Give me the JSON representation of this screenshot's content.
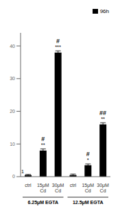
{
  "chart_data": {
    "type": "bar",
    "categories": [
      "ctrl",
      "15μM\nCd",
      "30μM\nCd",
      "ctrl",
      "15μM\nCd",
      "30μM\nCd"
    ],
    "series": [
      {
        "name": "96h",
        "color": "#000000",
        "values": [
          0.5,
          8.0,
          38.0,
          0.5,
          3.5,
          16.0
        ],
        "errors": [
          0.2,
          0.5,
          0.5,
          0.3,
          0.4,
          0.5
        ]
      }
    ],
    "ylim": [
      0,
      44
    ],
    "yticks": [
      0,
      10,
      20,
      30,
      40
    ],
    "grid": false,
    "legend": "upper right",
    "group_labels": [
      "6.25μM EGTA",
      "12.5μM EGTA"
    ],
    "annotations": [
      {
        "bar": 1,
        "text": "**"
      },
      {
        "bar": 2,
        "text": "***"
      },
      {
        "bar": 4,
        "text": "*"
      },
      {
        "bar": 5,
        "text": "**"
      },
      {
        "bar": 1,
        "text": "#"
      },
      {
        "bar": 2,
        "text": "#"
      },
      {
        "bar": 4,
        "text": "#"
      },
      {
        "bar": 5,
        "text": "##"
      },
      {
        "text": "1"
      }
    ]
  }
}
